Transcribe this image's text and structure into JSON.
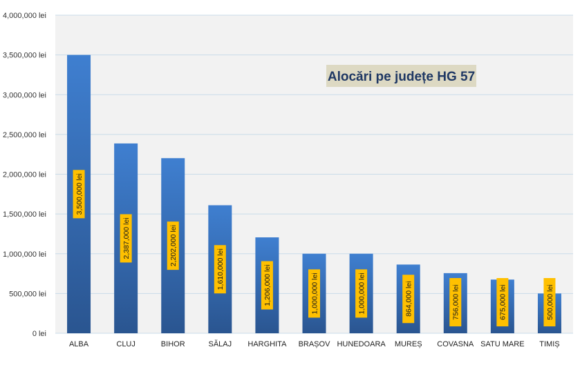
{
  "chart_data": {
    "type": "bar",
    "title": "Alocări pe județe HG 57",
    "xlabel": "",
    "ylabel": "",
    "categories": [
      "ALBA",
      "CLUJ",
      "BIHOR",
      "SĂLAJ",
      "HARGHITA",
      "BRAȘOV",
      "HUNEDOARA",
      "MUREȘ",
      "COVASNA",
      "SATU MARE",
      "TIMIȘ"
    ],
    "values": [
      3500000,
      2387000,
      2202000,
      1610000,
      1206000,
      1000000,
      1000000,
      864000,
      756000,
      675000,
      500000
    ],
    "data_labels": [
      "3,500,000 lei",
      "2,387,000 lei",
      "2,202,000 lei",
      "1,610,000 lei",
      "1,206,000 lei",
      "1,000,000 lei",
      "1,000,000 lei",
      "864,000 lei",
      "756,000 lei",
      "675,000 lei",
      "500,000 lei"
    ],
    "ylim": [
      0,
      4000000
    ],
    "yticks": [
      0,
      500000,
      1000000,
      1500000,
      2000000,
      2500000,
      3000000,
      3500000,
      4000000
    ],
    "ytick_labels": [
      "0 lei",
      "500,000 lei",
      "1,000,000 lei",
      "1,500,000 lei",
      "2,000,000 lei",
      "2,500,000 lei",
      "3,000,000 lei",
      "3,500,000 lei",
      "4,000,000 lei"
    ],
    "grid": true,
    "legend": "none",
    "colors": {
      "bar_top": "#3f7fd0",
      "bar_bottom": "#2a5590",
      "plot_background": "#f2f2f2",
      "gridline": "#c9dbe9",
      "data_label_background": "#ffc000",
      "title_background": "#ddd9c3",
      "title_text": "#1f3864"
    }
  }
}
